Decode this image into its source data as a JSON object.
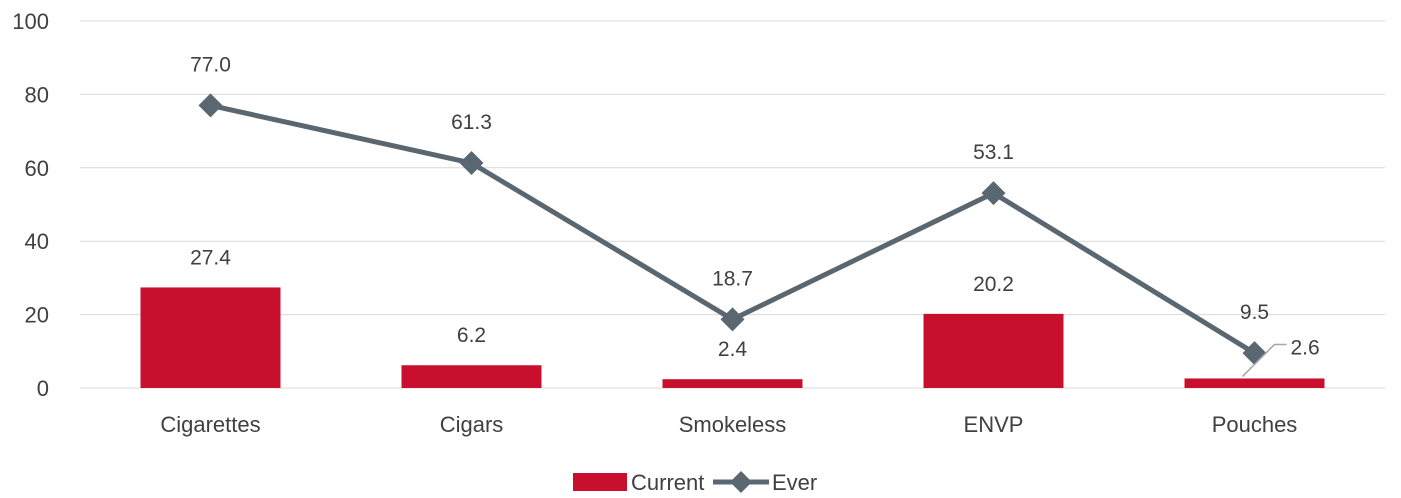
{
  "chart_data": {
    "type": "bar",
    "categories": [
      "Cigarettes",
      "Cigars",
      "Smokeless",
      "ENVP",
      "Pouches"
    ],
    "series": [
      {
        "name": "Current",
        "kind": "bar",
        "values": [
          27.4,
          6.2,
          2.4,
          20.2,
          2.6
        ],
        "labels": [
          "27.4",
          "6.2",
          "2.4",
          "20.2",
          "2.6"
        ],
        "color": "#c8102e"
      },
      {
        "name": "Ever",
        "kind": "line",
        "marker": "diamond",
        "values": [
          77.0,
          61.3,
          18.7,
          53.1,
          9.5
        ],
        "labels": [
          "77.0",
          "61.3",
          "18.7",
          "53.1",
          "9.5"
        ],
        "color": "#5b6770"
      }
    ],
    "yticks": [
      "0",
      "20",
      "40",
      "60",
      "80",
      "100"
    ],
    "ylim": [
      0,
      100
    ],
    "title": "",
    "xlabel": "",
    "ylabel": "",
    "grid": true,
    "legend_position": "bottom"
  }
}
